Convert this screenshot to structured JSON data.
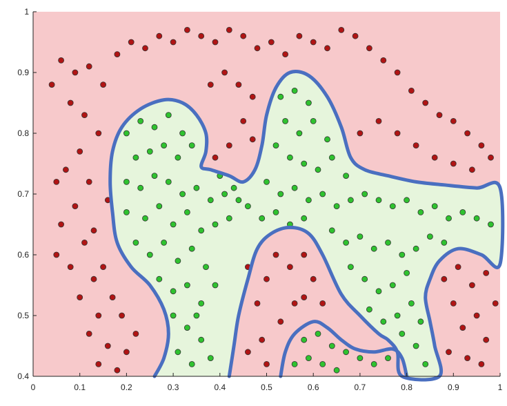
{
  "chart_data": {
    "type": "scatter",
    "title": "",
    "xlabel": "",
    "ylabel": "",
    "xlim": [
      0,
      1
    ],
    "ylim": [
      0.4,
      1
    ],
    "x_ticks": [
      "0",
      "0.1",
      "0.2",
      "0.3",
      "0.4",
      "0.5",
      "0.6",
      "0.7",
      "0.8",
      "0.9",
      "1"
    ],
    "y_ticks": [
      "0.4",
      "0.5",
      "0.6",
      "0.7",
      "0.8",
      "0.9",
      "1"
    ],
    "grid": false,
    "legend": "none",
    "colors": {
      "outside_region": "#f7c9cb",
      "inside_region": "#e6f5dc",
      "boundary": "#4a6fc0",
      "class_outside": "#b01414",
      "class_inside": "#2fc22f"
    },
    "decision_boundary": [
      [
        0.26,
        0.4
      ],
      [
        0.28,
        0.43
      ],
      [
        0.29,
        0.47
      ],
      [
        0.28,
        0.51
      ],
      [
        0.25,
        0.55
      ],
      [
        0.21,
        0.58
      ],
      [
        0.18,
        0.62
      ],
      [
        0.17,
        0.67
      ],
      [
        0.165,
        0.72
      ],
      [
        0.17,
        0.77
      ],
      [
        0.19,
        0.81
      ],
      [
        0.23,
        0.84
      ],
      [
        0.28,
        0.855
      ],
      [
        0.32,
        0.85
      ],
      [
        0.35,
        0.83
      ],
      [
        0.37,
        0.8
      ],
      [
        0.37,
        0.77
      ],
      [
        0.36,
        0.745
      ],
      [
        0.38,
        0.74
      ],
      [
        0.42,
        0.73
      ],
      [
        0.45,
        0.72
      ],
      [
        0.475,
        0.74
      ],
      [
        0.49,
        0.78
      ],
      [
        0.5,
        0.83
      ],
      [
        0.52,
        0.875
      ],
      [
        0.55,
        0.9
      ],
      [
        0.59,
        0.895
      ],
      [
        0.63,
        0.86
      ],
      [
        0.66,
        0.81
      ],
      [
        0.68,
        0.76
      ],
      [
        0.71,
        0.74
      ],
      [
        0.76,
        0.73
      ],
      [
        0.82,
        0.72
      ],
      [
        0.88,
        0.715
      ],
      [
        0.95,
        0.71
      ],
      [
        1.0,
        0.71
      ],
      [
        1.0,
        0.585
      ],
      [
        0.96,
        0.6
      ],
      [
        0.91,
        0.61
      ],
      [
        0.87,
        0.59
      ],
      [
        0.85,
        0.56
      ],
      [
        0.84,
        0.53
      ],
      [
        0.85,
        0.49
      ],
      [
        0.86,
        0.45
      ],
      [
        0.87,
        0.4
      ],
      [
        0.79,
        0.4
      ],
      [
        0.78,
        0.44
      ],
      [
        0.76,
        0.46
      ],
      [
        0.74,
        0.47
      ],
      [
        0.7,
        0.5
      ],
      [
        0.66,
        0.535
      ],
      [
        0.62,
        0.6
      ],
      [
        0.59,
        0.635
      ],
      [
        0.55,
        0.645
      ],
      [
        0.51,
        0.635
      ],
      [
        0.48,
        0.61
      ],
      [
        0.46,
        0.56
      ],
      [
        0.44,
        0.5
      ],
      [
        0.43,
        0.45
      ],
      [
        0.42,
        0.4
      ]
    ],
    "inner_region": [
      [
        0.53,
        0.4
      ],
      [
        0.54,
        0.44
      ],
      [
        0.56,
        0.47
      ],
      [
        0.6,
        0.49
      ],
      [
        0.63,
        0.48
      ],
      [
        0.66,
        0.46
      ],
      [
        0.69,
        0.445
      ],
      [
        0.73,
        0.44
      ],
      [
        0.77,
        0.445
      ],
      [
        0.79,
        0.43
      ],
      [
        0.8,
        0.4
      ]
    ],
    "series": [
      {
        "values": [
          [
            0.06,
            0.92
          ],
          [
            0.09,
            0.9
          ],
          [
            0.12,
            0.91
          ],
          [
            0.15,
            0.88
          ],
          [
            0.18,
            0.93
          ],
          [
            0.21,
            0.95
          ],
          [
            0.24,
            0.94
          ],
          [
            0.27,
            0.96
          ],
          [
            0.3,
            0.95
          ],
          [
            0.33,
            0.97
          ],
          [
            0.36,
            0.96
          ],
          [
            0.39,
            0.95
          ],
          [
            0.42,
            0.97
          ],
          [
            0.45,
            0.96
          ],
          [
            0.48,
            0.94
          ],
          [
            0.51,
            0.95
          ],
          [
            0.54,
            0.93
          ],
          [
            0.57,
            0.96
          ],
          [
            0.6,
            0.95
          ],
          [
            0.63,
            0.94
          ],
          [
            0.66,
            0.97
          ],
          [
            0.69,
            0.96
          ],
          [
            0.72,
            0.94
          ],
          [
            0.75,
            0.92
          ],
          [
            0.78,
            0.9
          ],
          [
            0.81,
            0.87
          ],
          [
            0.84,
            0.85
          ],
          [
            0.87,
            0.83
          ],
          [
            0.9,
            0.82
          ],
          [
            0.93,
            0.8
          ],
          [
            0.96,
            0.78
          ],
          [
            0.08,
            0.85
          ],
          [
            0.11,
            0.83
          ],
          [
            0.14,
            0.8
          ],
          [
            0.1,
            0.77
          ],
          [
            0.07,
            0.74
          ],
          [
            0.12,
            0.72
          ],
          [
            0.09,
            0.68
          ],
          [
            0.06,
            0.65
          ],
          [
            0.11,
            0.62
          ],
          [
            0.08,
            0.58
          ],
          [
            0.13,
            0.56
          ],
          [
            0.1,
            0.53
          ],
          [
            0.14,
            0.5
          ],
          [
            0.12,
            0.47
          ],
          [
            0.16,
            0.45
          ],
          [
            0.14,
            0.42
          ],
          [
            0.18,
            0.41
          ],
          [
            0.2,
            0.44
          ],
          [
            0.22,
            0.47
          ],
          [
            0.19,
            0.5
          ],
          [
            0.17,
            0.53
          ],
          [
            0.15,
            0.58
          ],
          [
            0.13,
            0.64
          ],
          [
            0.16,
            0.69
          ],
          [
            0.44,
            0.88
          ],
          [
            0.47,
            0.86
          ],
          [
            0.41,
            0.9
          ],
          [
            0.38,
            0.88
          ],
          [
            0.45,
            0.82
          ],
          [
            0.42,
            0.78
          ],
          [
            0.39,
            0.76
          ],
          [
            0.47,
            0.79
          ],
          [
            0.7,
            0.8
          ],
          [
            0.74,
            0.82
          ],
          [
            0.78,
            0.8
          ],
          [
            0.82,
            0.78
          ],
          [
            0.86,
            0.76
          ],
          [
            0.9,
            0.75
          ],
          [
            0.94,
            0.74
          ],
          [
            0.98,
            0.76
          ],
          [
            0.46,
            0.58
          ],
          [
            0.48,
            0.52
          ],
          [
            0.5,
            0.56
          ],
          [
            0.52,
            0.6
          ],
          [
            0.49,
            0.46
          ],
          [
            0.46,
            0.44
          ],
          [
            0.5,
            0.42
          ],
          [
            0.55,
            0.58
          ],
          [
            0.58,
            0.6
          ],
          [
            0.6,
            0.56
          ],
          [
            0.62,
            0.52
          ],
          [
            0.56,
            0.52
          ],
          [
            0.53,
            0.49
          ],
          [
            0.58,
            0.53
          ],
          [
            0.88,
            0.56
          ],
          [
            0.9,
            0.52
          ],
          [
            0.92,
            0.48
          ],
          [
            0.95,
            0.5
          ],
          [
            0.97,
            0.46
          ],
          [
            0.99,
            0.52
          ],
          [
            0.93,
            0.43
          ],
          [
            0.96,
            0.42
          ],
          [
            0.89,
            0.44
          ],
          [
            0.91,
            0.58
          ],
          [
            0.94,
            0.55
          ],
          [
            0.97,
            0.57
          ],
          [
            0.04,
            0.88
          ],
          [
            0.05,
            0.72
          ],
          [
            0.05,
            0.6
          ]
        ]
      },
      {
        "values": [
          [
            0.2,
            0.8
          ],
          [
            0.23,
            0.82
          ],
          [
            0.26,
            0.81
          ],
          [
            0.29,
            0.83
          ],
          [
            0.32,
            0.8
          ],
          [
            0.22,
            0.76
          ],
          [
            0.25,
            0.77
          ],
          [
            0.28,
            0.78
          ],
          [
            0.31,
            0.76
          ],
          [
            0.34,
            0.78
          ],
          [
            0.2,
            0.72
          ],
          [
            0.23,
            0.71
          ],
          [
            0.26,
            0.73
          ],
          [
            0.29,
            0.72
          ],
          [
            0.32,
            0.7
          ],
          [
            0.35,
            0.71
          ],
          [
            0.38,
            0.69
          ],
          [
            0.41,
            0.7
          ],
          [
            0.44,
            0.69
          ],
          [
            0.2,
            0.67
          ],
          [
            0.24,
            0.66
          ],
          [
            0.27,
            0.68
          ],
          [
            0.3,
            0.65
          ],
          [
            0.33,
            0.67
          ],
          [
            0.36,
            0.64
          ],
          [
            0.39,
            0.65
          ],
          [
            0.42,
            0.66
          ],
          [
            0.22,
            0.62
          ],
          [
            0.25,
            0.6
          ],
          [
            0.28,
            0.62
          ],
          [
            0.31,
            0.59
          ],
          [
            0.34,
            0.61
          ],
          [
            0.37,
            0.58
          ],
          [
            0.27,
            0.56
          ],
          [
            0.3,
            0.54
          ],
          [
            0.33,
            0.55
          ],
          [
            0.36,
            0.52
          ],
          [
            0.3,
            0.5
          ],
          [
            0.33,
            0.48
          ],
          [
            0.36,
            0.46
          ],
          [
            0.31,
            0.44
          ],
          [
            0.34,
            0.42
          ],
          [
            0.38,
            0.43
          ],
          [
            0.35,
            0.5
          ],
          [
            0.39,
            0.55
          ],
          [
            0.53,
            0.86
          ],
          [
            0.56,
            0.87
          ],
          [
            0.59,
            0.85
          ],
          [
            0.54,
            0.82
          ],
          [
            0.57,
            0.8
          ],
          [
            0.6,
            0.82
          ],
          [
            0.63,
            0.79
          ],
          [
            0.52,
            0.78
          ],
          [
            0.55,
            0.76
          ],
          [
            0.58,
            0.75
          ],
          [
            0.61,
            0.74
          ],
          [
            0.64,
            0.76
          ],
          [
            0.67,
            0.73
          ],
          [
            0.5,
            0.72
          ],
          [
            0.53,
            0.7
          ],
          [
            0.56,
            0.71
          ],
          [
            0.59,
            0.69
          ],
          [
            0.62,
            0.7
          ],
          [
            0.65,
            0.68
          ],
          [
            0.68,
            0.69
          ],
          [
            0.71,
            0.7
          ],
          [
            0.74,
            0.69
          ],
          [
            0.77,
            0.68
          ],
          [
            0.8,
            0.69
          ],
          [
            0.83,
            0.67
          ],
          [
            0.86,
            0.68
          ],
          [
            0.89,
            0.66
          ],
          [
            0.92,
            0.67
          ],
          [
            0.95,
            0.66
          ],
          [
            0.98,
            0.65
          ],
          [
            0.46,
            0.68
          ],
          [
            0.49,
            0.66
          ],
          [
            0.52,
            0.67
          ],
          [
            0.55,
            0.65
          ],
          [
            0.58,
            0.66
          ],
          [
            0.64,
            0.64
          ],
          [
            0.67,
            0.62
          ],
          [
            0.7,
            0.63
          ],
          [
            0.73,
            0.61
          ],
          [
            0.76,
            0.62
          ],
          [
            0.79,
            0.6
          ],
          [
            0.82,
            0.61
          ],
          [
            0.85,
            0.63
          ],
          [
            0.88,
            0.62
          ],
          [
            0.68,
            0.58
          ],
          [
            0.71,
            0.56
          ],
          [
            0.74,
            0.54
          ],
          [
            0.77,
            0.55
          ],
          [
            0.8,
            0.57
          ],
          [
            0.72,
            0.51
          ],
          [
            0.75,
            0.49
          ],
          [
            0.78,
            0.5
          ],
          [
            0.81,
            0.52
          ],
          [
            0.79,
            0.47
          ],
          [
            0.82,
            0.45
          ],
          [
            0.58,
            0.46
          ],
          [
            0.61,
            0.47
          ],
          [
            0.64,
            0.45
          ],
          [
            0.67,
            0.44
          ],
          [
            0.7,
            0.43
          ],
          [
            0.56,
            0.42
          ],
          [
            0.59,
            0.43
          ],
          [
            0.62,
            0.42
          ],
          [
            0.65,
            0.41
          ],
          [
            0.73,
            0.42
          ],
          [
            0.76,
            0.43
          ],
          [
            0.83,
            0.49
          ],
          [
            0.84,
            0.42
          ],
          [
            0.4,
            0.73
          ],
          [
            0.43,
            0.71
          ]
        ]
      }
    ]
  }
}
